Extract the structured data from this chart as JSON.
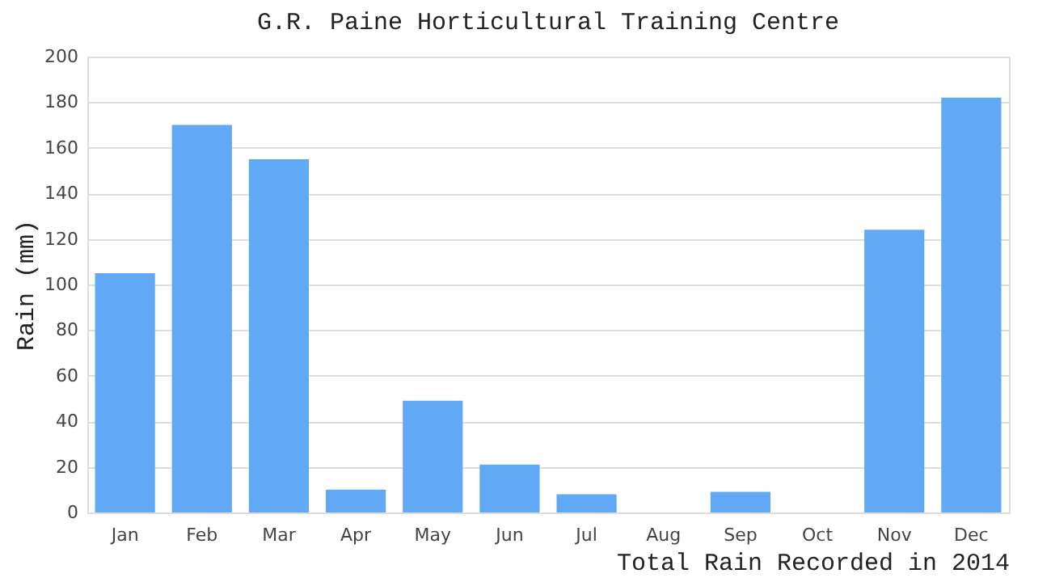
{
  "chart_data": {
    "type": "bar",
    "title": "G.R. Paine Horticultural Training Centre",
    "xlabel": "Total Rain Recorded in 2014",
    "ylabel": "Rain (mm)",
    "categories": [
      "Jan",
      "Feb",
      "Mar",
      "Apr",
      "May",
      "Jun",
      "Jul",
      "Aug",
      "Sep",
      "Oct",
      "Nov",
      "Dec"
    ],
    "values": [
      105,
      170,
      155,
      10,
      49,
      21,
      8,
      0,
      9,
      0,
      124,
      182
    ],
    "color": "#62a9f5",
    "ylim": [
      0,
      200
    ],
    "yticks": [
      0,
      20,
      40,
      60,
      80,
      100,
      120,
      140,
      160,
      180,
      200
    ],
    "grid": "y"
  }
}
